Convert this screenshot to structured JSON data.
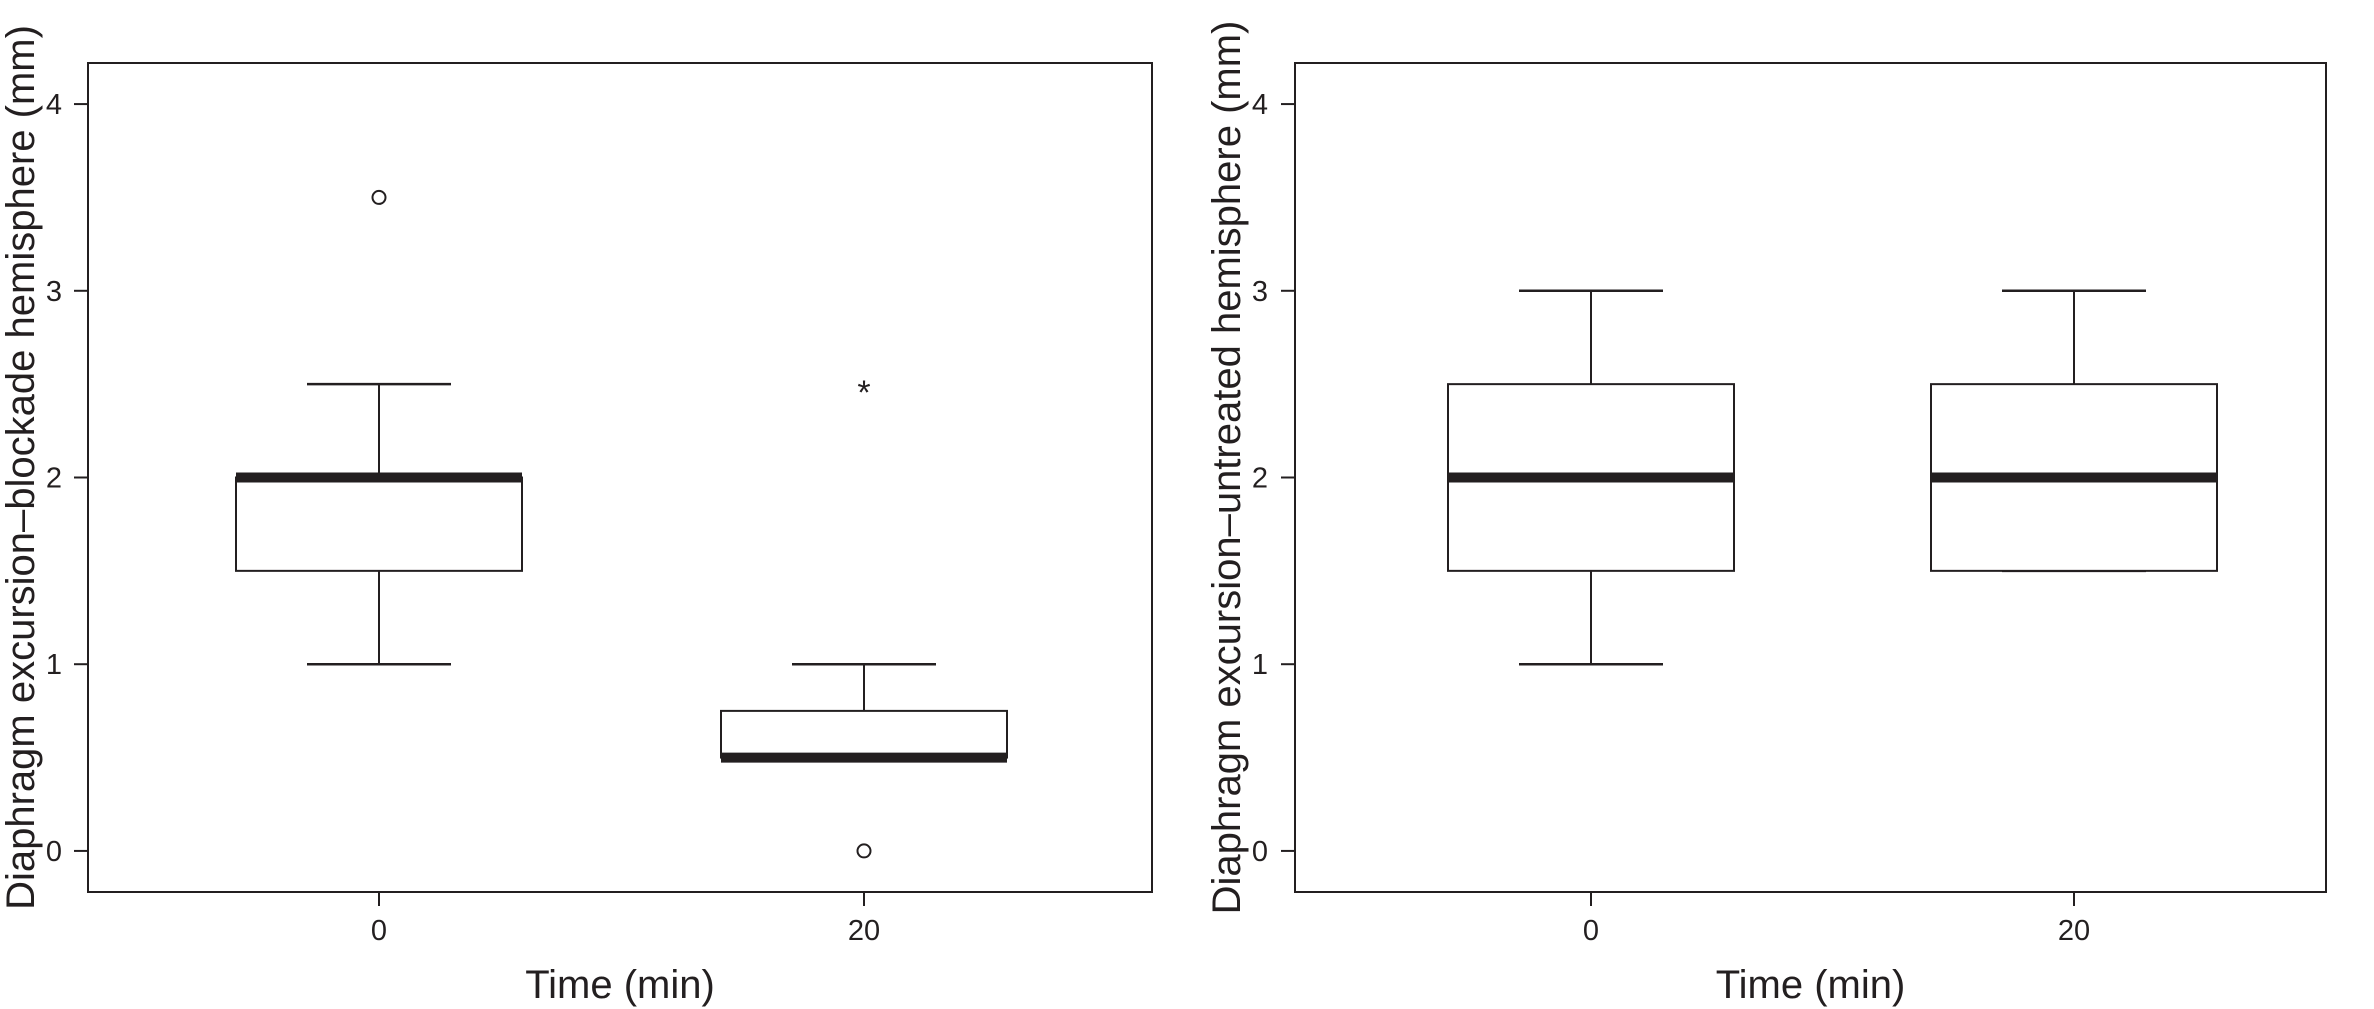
{
  "chart_data": [
    {
      "type": "boxplot",
      "xlabel": "Time (min)",
      "ylabel": "Diaphragm excursion–blockade hemisphere (mm)",
      "ylim": [
        -0.22,
        4.22
      ],
      "yticks": [
        0,
        1,
        2,
        3,
        4
      ],
      "categories": [
        "0",
        "20"
      ],
      "boxes": [
        {
          "category": "0",
          "whisker_low": 1.0,
          "q1": 1.5,
          "median": 2.0,
          "q3": 2.0,
          "whisker_high": 2.5,
          "outliers": [
            {
              "value": 3.5,
              "marker": "circle"
            }
          ]
        },
        {
          "category": "20",
          "whisker_low": 0.5,
          "q1": 0.5,
          "median": 0.5,
          "q3": 0.75,
          "whisker_high": 1.0,
          "outliers": [
            {
              "value": 2.5,
              "marker": "star"
            },
            {
              "value": 0.0,
              "marker": "circle"
            }
          ]
        }
      ],
      "grid": false,
      "colors": {
        "box_fill": "#ffffff",
        "line": "#231f20"
      }
    },
    {
      "type": "boxplot",
      "xlabel": "Time (min)",
      "ylabel": "Diaphragm excursion–untreated hemisphere (mm)",
      "ylim": [
        -0.22,
        4.22
      ],
      "yticks": [
        0,
        1,
        2,
        3,
        4
      ],
      "categories": [
        "0",
        "20"
      ],
      "boxes": [
        {
          "category": "0",
          "whisker_low": 1.0,
          "q1": 1.5,
          "median": 2.0,
          "q3": 2.5,
          "whisker_high": 3.0,
          "outliers": []
        },
        {
          "category": "20",
          "whisker_low": 1.5,
          "q1": 1.5,
          "median": 2.0,
          "q3": 2.5,
          "whisker_high": 3.0,
          "outliers": []
        }
      ],
      "grid": false,
      "colors": {
        "box_fill": "#ffffff",
        "line": "#231f20"
      }
    }
  ]
}
